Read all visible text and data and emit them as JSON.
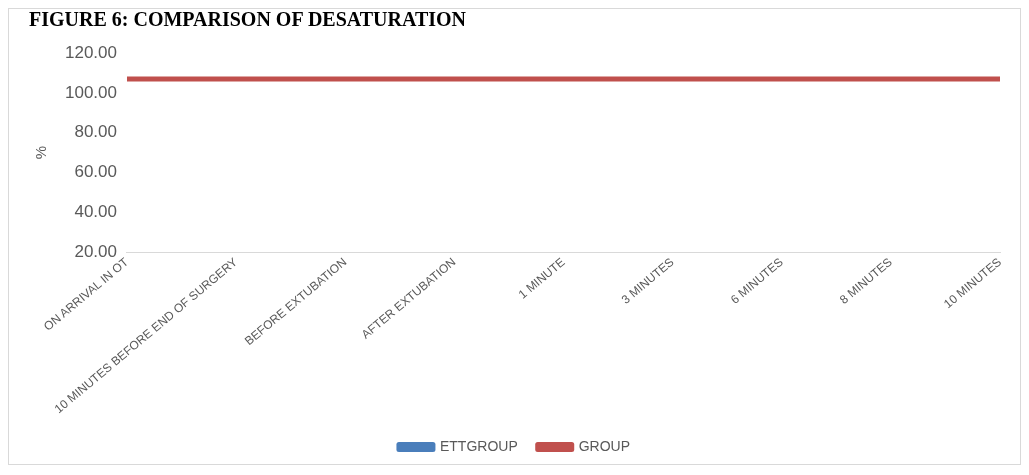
{
  "chart_data": {
    "type": "line",
    "title": "FIGURE 6: COMPARISON OF DESATURATION",
    "ylabel": "%",
    "categories": [
      "ON ARRIVAL IN OT",
      "10 MINUTES BEFORE END OF SURGERY",
      "BEFORE EXTUBATION",
      "AFTER EXTUBATION",
      "1 MINUTE",
      "3 MINUTES",
      "6 MINUTES",
      "8 MINUTES",
      "10 MINUTES"
    ],
    "series": [
      {
        "name": "ETTGROUP",
        "color": "#4a7ebb",
        "values": [
          null,
          null,
          null,
          null,
          null,
          null,
          null,
          null,
          null
        ]
      },
      {
        "name": "GROUP",
        "color": "#c0504d",
        "values": [
          107,
          107,
          107,
          107,
          107,
          107,
          107,
          107,
          107
        ]
      }
    ],
    "ylim": [
      20,
      120
    ],
    "yticks": [
      {
        "value": 20,
        "label": "20.00"
      },
      {
        "value": 40,
        "label": "40.00"
      },
      {
        "value": 60,
        "label": "60.00"
      },
      {
        "value": 80,
        "label": "80.00"
      },
      {
        "value": 100,
        "label": "100.00"
      },
      {
        "value": 120,
        "label": "120.00"
      }
    ],
    "grid": false,
    "legend": "bottom",
    "marker": "none",
    "line_style": "solid"
  }
}
